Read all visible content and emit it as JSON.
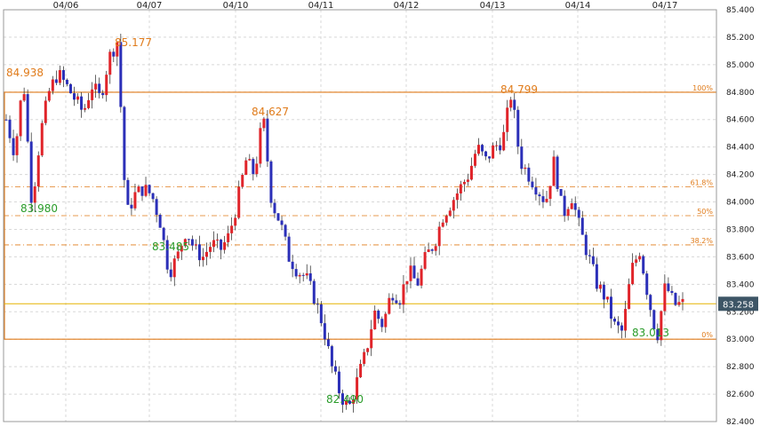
{
  "chart_data": {
    "type": "candlestick",
    "title": "",
    "xlabel": "",
    "ylabel": "",
    "ylim": [
      82.4,
      85.4
    ],
    "y_ticks": [
      "85.400",
      "85.200",
      "85.000",
      "84.800",
      "84.600",
      "84.400",
      "84.200",
      "84.000",
      "83.800",
      "83.600",
      "83.400",
      "83.200",
      "83.000",
      "82.800",
      "82.600",
      "82.400"
    ],
    "x_labels": [
      "04/06",
      "04/07",
      "04/10",
      "04/11",
      "04/12",
      "04/13",
      "04/14",
      "04/17"
    ],
    "grid": true,
    "colors": {
      "up": "#e0242a",
      "down": "#2b2fb8",
      "fib": "#e07b1a",
      "current": "#e6b400",
      "current_box": "#3d5566",
      "high_label": "#e07b1a",
      "low_label": "#2a9c2a"
    },
    "fibonacci": {
      "high": 84.799,
      "low": 83.0,
      "levels": [
        {
          "label": "100%",
          "value": 84.799
        },
        {
          "label": "61.8%",
          "value": 84.111
        },
        {
          "label": "50%",
          "value": 83.9
        },
        {
          "label": "38.2%",
          "value": 83.687
        },
        {
          "label": "0%",
          "value": 83.0
        }
      ]
    },
    "current_price": "83.258",
    "annotations": [
      {
        "text": "84.938",
        "kind": "high"
      },
      {
        "text": "85.177",
        "kind": "high"
      },
      {
        "text": "84.627",
        "kind": "high"
      },
      {
        "text": "84.799",
        "kind": "high"
      },
      {
        "text": "83.980",
        "kind": "low"
      },
      {
        "text": "83.485",
        "kind": "low"
      },
      {
        "text": "82.490",
        "kind": "low"
      },
      {
        "text": "83.013",
        "kind": "low"
      }
    ],
    "close_path": [
      84.6,
      84.35,
      84.9,
      83.98,
      84.5,
      84.8,
      84.938,
      84.85,
      84.75,
      84.65,
      84.85,
      84.75,
      85.05,
      85.177,
      83.9,
      84.05,
      84.1,
      84.05,
      83.85,
      83.485,
      83.6,
      83.8,
      83.65,
      83.6,
      83.7,
      83.65,
      83.75,
      84.0,
      84.3,
      84.2,
      84.627,
      84.0,
      83.85,
      83.6,
      83.5,
      83.45,
      83.3,
      83.1,
      82.8,
      82.6,
      82.49,
      82.7,
      82.9,
      83.2,
      83.1,
      83.35,
      83.3,
      83.5,
      83.4,
      83.6,
      83.7,
      83.9,
      84.0,
      84.1,
      84.2,
      84.4,
      84.3,
      84.4,
      84.45,
      84.799,
      84.3,
      84.2,
      84.1,
      84.0,
      84.3,
      83.9,
      84.05,
      83.8,
      83.6,
      83.4,
      83.3,
      83.1,
      83.05,
      83.5,
      83.65,
      83.3,
      83.013,
      83.4,
      83.25,
      83.258
    ]
  }
}
